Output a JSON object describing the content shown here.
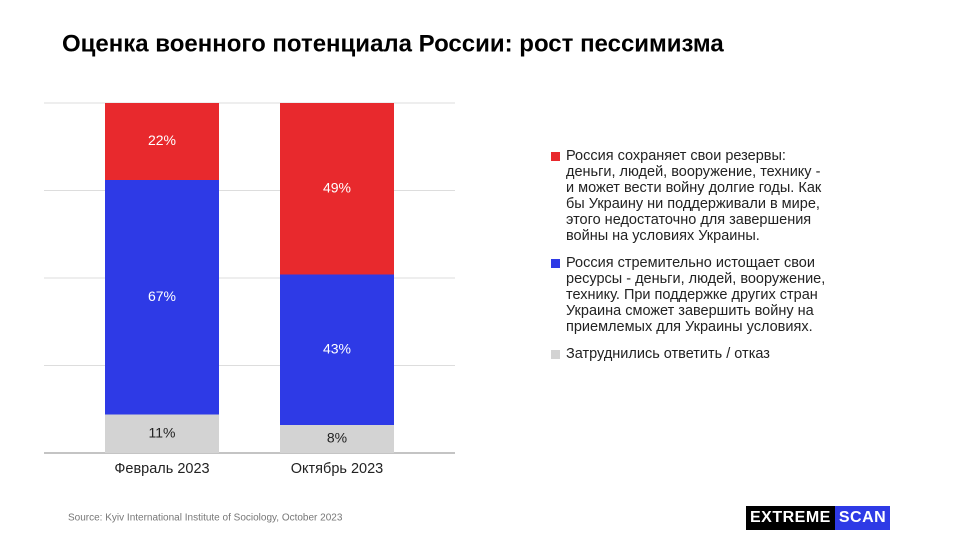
{
  "chart_data": {
    "type": "stacked_bar",
    "title": "Оценка военного потенциала России: рост пессимизма",
    "categories": [
      "Февраль 2023",
      "Октябрь 2023"
    ],
    "series": [
      {
        "name": "Затруднились ответить / отказ",
        "color": "#d3d3d3",
        "values": [
          11,
          8
        ],
        "value_labels": [
          "11%",
          "8%"
        ]
      },
      {
        "name": "Россия стремительно истощает свои ресурсы - деньги, людей, вооружение, технику. При поддержке других стран Украина сможет завершить войну на приемлемых для Украины условиях.",
        "color": "#2e3ae6",
        "values": [
          67,
          43
        ],
        "value_labels": [
          "67%",
          "43%"
        ]
      },
      {
        "name": "Россия сохраняет свои резервы: деньги, людей, вооружение, технику - и может вести войну долгие годы. Как бы Украину ни поддерживали в мире, этого недостаточно для завершения войны на условиях Украины.",
        "color": "#e8292d",
        "values": [
          22,
          49
        ],
        "value_labels": [
          "22%",
          "49%"
        ]
      }
    ],
    "ylim": [
      0,
      100
    ],
    "yticks": [
      0,
      25,
      50,
      75,
      100
    ],
    "grid": true,
    "source": "Source: Kyiv International Institute of Sociology, October 2023",
    "logo": [
      "EXTREME",
      "SCAN"
    ]
  }
}
